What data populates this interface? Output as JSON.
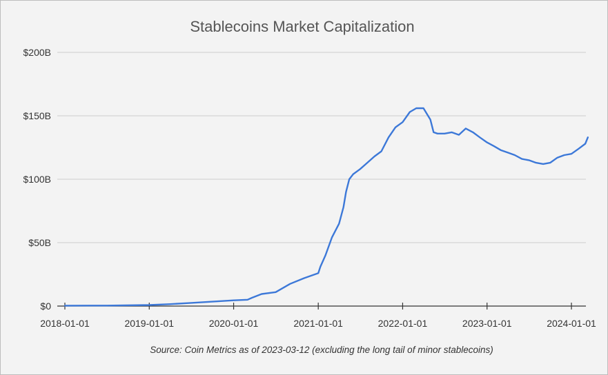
{
  "chart_data": {
    "type": "line",
    "title": "Stablecoins Market Capitalization",
    "source_note": "Source: Coin Metrics as of 2023-03-12 (excluding the long tail of minor stablecoins)",
    "xlabel": "",
    "ylabel": "",
    "x_ticks": [
      "2018-01-01",
      "2019-01-01",
      "2020-01-01",
      "2021-01-01",
      "2022-01-01",
      "2023-01-01",
      "2024-01-01"
    ],
    "y_ticks": [
      "$0",
      "$50B",
      "$100B",
      "$150B",
      "$200B"
    ],
    "y_tick_values": [
      0,
      50,
      100,
      150,
      200
    ],
    "ylim": [
      0,
      200
    ],
    "xlim": [
      "2018-01-01",
      "2024-03-12"
    ],
    "grid": true,
    "legend": "none",
    "line_color": "#3c78d8",
    "series": [
      {
        "x": [
          "2018-01-01",
          "2018-07-01",
          "2019-01-01",
          "2019-04-01",
          "2019-07-01",
          "2019-10-01",
          "2020-01-01",
          "2020-03-01",
          "2020-03-20",
          "2020-05-01",
          "2020-07-01",
          "2020-09-01",
          "2020-11-01",
          "2021-01-01",
          "2021-01-10",
          "2021-02-01",
          "2021-03-01",
          "2021-04-01",
          "2021-04-20",
          "2021-05-01",
          "2021-05-15",
          "2021-06-01",
          "2021-07-01",
          "2021-08-01",
          "2021-09-01",
          "2021-10-01",
          "2021-11-01",
          "2021-12-01",
          "2022-01-01",
          "2022-02-01",
          "2022-03-01",
          "2022-04-01",
          "2022-05-01",
          "2022-05-15",
          "2022-06-01",
          "2022-07-01",
          "2022-08-01",
          "2022-09-01",
          "2022-10-01",
          "2022-11-01",
          "2022-12-01",
          "2023-01-01",
          "2023-02-01",
          "2023-03-01",
          "2023-04-01",
          "2023-05-01",
          "2023-06-01",
          "2023-07-01",
          "2023-08-01",
          "2023-09-01",
          "2023-10-01",
          "2023-11-01",
          "2023-12-01",
          "2024-01-01",
          "2024-02-01",
          "2024-03-01",
          "2024-03-12"
        ],
        "y": [
          0.3,
          0.4,
          0.8,
          1.5,
          2.5,
          3.5,
          4.5,
          5.0,
          6.5,
          9.5,
          11.0,
          17.5,
          22.0,
          26.0,
          31.0,
          40.0,
          54.0,
          65.0,
          78.0,
          90.0,
          100.0,
          104.0,
          108.0,
          113.0,
          118.0,
          122.0,
          133.0,
          141.0,
          145.0,
          153.0,
          156.0,
          156.0,
          147.0,
          137.0,
          136.0,
          136.0,
          137.0,
          135.0,
          140.0,
          137.0,
          133.0,
          129.0,
          126.0,
          123.0,
          121.0,
          119.0,
          116.0,
          115.0,
          113.0,
          112.0,
          113.0,
          117.0,
          119.0,
          120.0,
          124.0,
          128.0,
          133.0
        ]
      }
    ]
  }
}
